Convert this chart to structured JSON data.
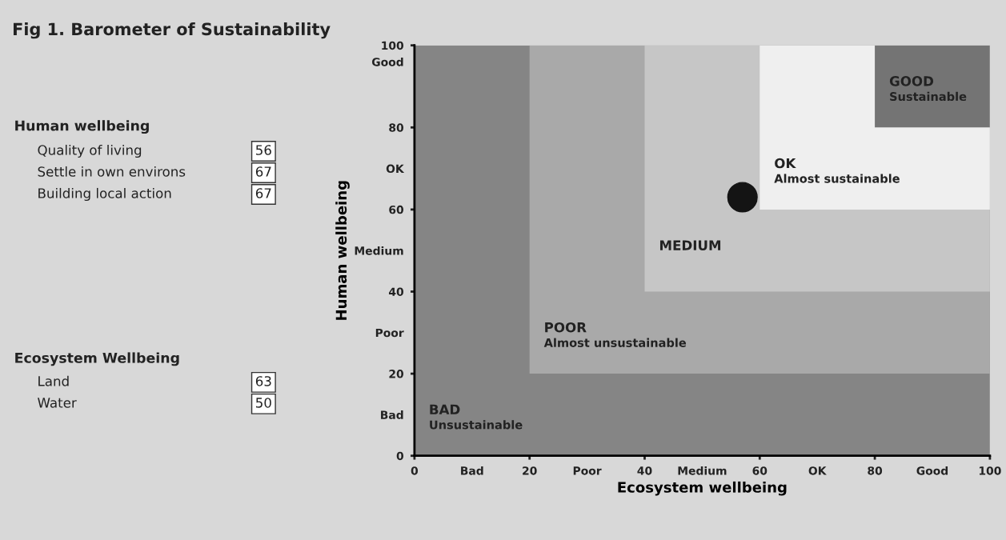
{
  "chart_data": {
    "type": "scatter",
    "title": "Fig 1. Barometer of Sustainability",
    "xlabel": "Ecosystem wellbeing",
    "ylabel": "Human wellbeing",
    "x": [
      57
    ],
    "values": [
      63
    ],
    "color": "#141414",
    "marker": "circle",
    "xlim": [
      0,
      100
    ],
    "ylim": [
      0,
      100
    ],
    "xticks": [
      0,
      20,
      40,
      60,
      80,
      100,
      {
        "value": 10,
        "label": "Bad"
      },
      {
        "value": 30,
        "label": "Poor"
      },
      {
        "value": 50,
        "label": "Medium"
      },
      {
        "value": 70,
        "label": "OK"
      },
      {
        "value": 90,
        "label": "Good"
      }
    ],
    "yticks": [
      0,
      20,
      40,
      60,
      80,
      100,
      {
        "value": 10,
        "label": "Bad"
      },
      {
        "value": 30,
        "label": "Poor"
      },
      {
        "value": 50,
        "label": "Medium"
      },
      {
        "value": 70,
        "label": "OK"
      },
      {
        "value": 96,
        "label": "Good"
      }
    ],
    "bands": [
      {
        "axis": "x",
        "from": 0,
        "to": 100,
        "label": "BAD\nUnsustainable",
        "color": "#858585"
      },
      {
        "axis": "x",
        "from": 20,
        "to": 100,
        "label": "POOR\nAlmost unsustainable",
        "color": "#a9a9a9"
      },
      {
        "axis": "x",
        "from": 40,
        "to": 100,
        "label": "MEDIUM",
        "color": "#c6c6c6"
      },
      {
        "axis": "x",
        "from": 60,
        "to": 100,
        "label": "OK\nAlmost sustainable",
        "color": "#efefef"
      },
      {
        "axis": "x",
        "from": 80,
        "to": 100,
        "label": "GOOD\nSustainable",
        "color": "#747474"
      }
    ],
    "annotations": [
      "Human wellbeing",
      "Quality of living",
      "56",
      "Settle in own environs",
      "67",
      "Building local action",
      "67",
      "Ecosystem Wellbeing",
      "Land",
      "63",
      "Water",
      "50"
    ],
    "grid": false,
    "legend": false
  }
}
